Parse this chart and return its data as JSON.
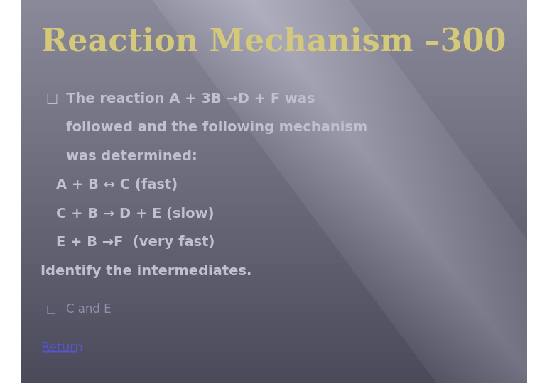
{
  "title": "Reaction Mechanism –300",
  "title_color": "#D4C97A",
  "title_fontsize": 32,
  "text_color": "#c0c0d0",
  "bullet_color": "#c0c0d0",
  "answer_color": "#9090b0",
  "return_color": "#5555cc",
  "bullet1_lines": [
    "The reaction A + 3B →D + F was",
    "followed and the following mechanism",
    "was determined:"
  ],
  "reaction_lines": [
    "A + B ↔ C (fast)",
    "C + B → D + E (slow)",
    "E + B →F  (very fast)"
  ],
  "identify_line": "Identify the intermediates.",
  "answer_line": "C and E",
  "return_line": "Return",
  "figsize": [
    7.7,
    5.4
  ],
  "dpi": 100
}
